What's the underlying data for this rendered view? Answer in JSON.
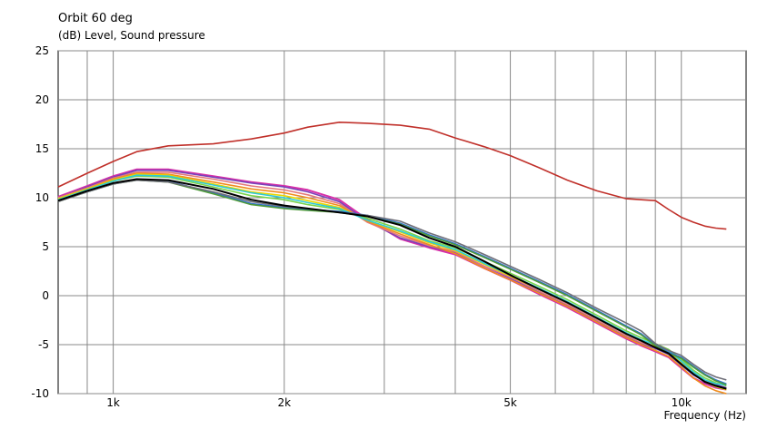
{
  "chart_data": {
    "type": "line",
    "title": "Orbit 60 deg",
    "ylabel": "(dB)  Level, Sound pressure",
    "xlabel": "Frequency  (Hz)",
    "xscale": "log",
    "xlim": [
      800,
      13000
    ],
    "ylim": [
      -10,
      25
    ],
    "yticks": [
      -10,
      -5,
      0,
      5,
      10,
      15,
      20,
      25
    ],
    "xticks": [
      {
        "value": 1000,
        "label": "1k"
      },
      {
        "value": 2000,
        "label": "2k"
      },
      {
        "value": 5000,
        "label": "5k"
      },
      {
        "value": 10000,
        "label": "10k"
      }
    ],
    "grid": true,
    "series": [
      {
        "color": "#c0302a",
        "x": [
          800,
          900,
          1000,
          1100,
          1250,
          1500,
          1750,
          2000,
          2200,
          2500,
          2800,
          3200,
          3600,
          4000,
          4500,
          5000,
          5600,
          6300,
          7100,
          8000,
          8500,
          9000,
          9500,
          10000,
          10500,
          11000,
          11500,
          12000
        ],
        "y": [
          11.1,
          12.5,
          13.7,
          14.7,
          15.3,
          15.5,
          16.0,
          16.6,
          17.2,
          17.7,
          17.6,
          17.4,
          17.0,
          16.1,
          15.2,
          14.3,
          13.1,
          11.8,
          10.7,
          9.9,
          9.8,
          9.7,
          8.8,
          8.0,
          7.5,
          7.1,
          6.9,
          6.8
        ]
      },
      {
        "color": "#d72fa8",
        "x": [
          800,
          900,
          1000,
          1100,
          1250,
          1500,
          1750,
          2000,
          2200,
          2500,
          2800,
          3200,
          3600,
          4000,
          4500,
          5000,
          5600,
          6300,
          7100,
          8000,
          8500,
          9000,
          9500,
          10000,
          10500,
          11000,
          11500,
          12000
        ],
        "y": [
          10.1,
          11.2,
          12.2,
          12.9,
          12.9,
          12.2,
          11.6,
          11.2,
          10.8,
          9.8,
          7.8,
          5.8,
          4.9,
          4.2,
          2.8,
          1.6,
          0.2,
          -1.2,
          -2.8,
          -4.4,
          -5.1,
          -5.7,
          -6.3,
          -7.4,
          -8.4,
          -9.0,
          -9.4,
          -9.6
        ]
      },
      {
        "color": "#7a42b8",
        "x": [
          800,
          900,
          1000,
          1100,
          1250,
          1500,
          1750,
          2000,
          2200,
          2500,
          2800,
          3200,
          3600,
          4000,
          4500,
          5000,
          5600,
          6300,
          7100,
          8000,
          8500,
          9000,
          9500,
          10000,
          10500,
          11000,
          11500,
          12000
        ],
        "y": [
          10.0,
          11.1,
          12.1,
          12.8,
          12.8,
          12.1,
          11.5,
          11.1,
          10.6,
          9.6,
          7.6,
          5.9,
          5.0,
          4.4,
          3.0,
          1.8,
          0.4,
          -1.0,
          -2.6,
          -4.2,
          -4.9,
          -5.4,
          -6.0,
          -7.1,
          -8.1,
          -8.7,
          -9.1,
          -9.4
        ]
      },
      {
        "color": "#e47a7a",
        "x": [
          800,
          900,
          1000,
          1100,
          1250,
          1500,
          1750,
          2000,
          2200,
          2500,
          2800,
          3200,
          3600,
          4000,
          4500,
          5000,
          5600,
          6300,
          7100,
          8000,
          8500,
          9000,
          9500,
          10000,
          10500,
          11000,
          11500,
          12000
        ],
        "y": [
          10.0,
          11.0,
          12.0,
          12.6,
          12.6,
          11.9,
          11.2,
          10.8,
          10.3,
          9.4,
          7.5,
          6.1,
          5.1,
          4.5,
          3.0,
          1.9,
          0.5,
          -0.9,
          -2.5,
          -4.1,
          -4.8,
          -5.3,
          -5.9,
          -7.0,
          -8.0,
          -8.7,
          -9.2,
          -9.5
        ]
      },
      {
        "color": "#f08c1e",
        "x": [
          800,
          900,
          1000,
          1100,
          1250,
          1500,
          1750,
          2000,
          2200,
          2500,
          2800,
          3200,
          3600,
          4000,
          4500,
          5000,
          5600,
          6300,
          7100,
          8000,
          8500,
          9000,
          9500,
          10000,
          10500,
          11000,
          11500,
          12000
        ],
        "y": [
          9.9,
          10.9,
          11.9,
          12.5,
          12.4,
          11.6,
          10.9,
          10.5,
          10.0,
          9.2,
          7.6,
          6.3,
          5.2,
          4.3,
          2.8,
          1.6,
          0.3,
          -1.1,
          -2.7,
          -4.3,
          -5.0,
          -5.6,
          -6.2,
          -7.3,
          -8.4,
          -9.2,
          -9.7,
          -10.0
        ]
      },
      {
        "color": "#e8d600",
        "x": [
          800,
          900,
          1000,
          1100,
          1250,
          1500,
          1750,
          2000,
          2200,
          2500,
          2800,
          3200,
          3600,
          4000,
          4500,
          5000,
          5600,
          6300,
          7100,
          8000,
          8500,
          9000,
          9500,
          10000,
          10500,
          11000,
          11500,
          12000
        ],
        "y": [
          9.9,
          10.9,
          11.8,
          12.4,
          12.3,
          11.4,
          10.6,
          10.2,
          9.7,
          9.0,
          7.7,
          6.5,
          5.4,
          4.6,
          3.2,
          2.0,
          0.7,
          -0.7,
          -2.3,
          -3.9,
          -4.6,
          -5.2,
          -5.8,
          -6.9,
          -8.0,
          -8.8,
          -9.3,
          -9.6
        ]
      },
      {
        "color": "#78d34a",
        "x": [
          800,
          900,
          1000,
          1100,
          1250,
          1500,
          1750,
          2000,
          2200,
          2500,
          2800,
          3200,
          3600,
          4000,
          4500,
          5000,
          5600,
          6300,
          7100,
          8000,
          8500,
          9000,
          9500,
          10000,
          10500,
          11000,
          11500,
          12000
        ],
        "y": [
          9.8,
          10.8,
          11.7,
          12.2,
          12.1,
          11.1,
          10.2,
          9.8,
          9.3,
          8.8,
          7.9,
          6.8,
          5.6,
          4.9,
          3.5,
          2.3,
          1.0,
          -0.4,
          -2.0,
          -3.6,
          -4.3,
          -4.9,
          -5.5,
          -6.5,
          -7.6,
          -8.4,
          -8.9,
          -9.2
        ]
      },
      {
        "color": "#2ec9d6",
        "x": [
          800,
          900,
          1000,
          1100,
          1250,
          1500,
          1750,
          2000,
          2200,
          2500,
          2800,
          3200,
          3600,
          4000,
          4500,
          5000,
          5600,
          6300,
          7100,
          8000,
          8500,
          9000,
          9500,
          10000,
          10500,
          11000,
          11500,
          12000
        ],
        "y": [
          9.8,
          10.8,
          11.7,
          12.3,
          12.2,
          11.3,
          10.5,
          10.0,
          9.5,
          8.9,
          7.7,
          6.6,
          5.5,
          4.7,
          3.3,
          2.1,
          0.8,
          -0.6,
          -2.2,
          -3.8,
          -4.5,
          -5.0,
          -5.6,
          -6.7,
          -7.8,
          -8.6,
          -9.0,
          -9.1
        ]
      },
      {
        "color": "#2d6fd0",
        "x": [
          800,
          900,
          1000,
          1100,
          1250,
          1500,
          1750,
          2000,
          2200,
          2500,
          2800,
          3200,
          3600,
          4000,
          4500,
          5000,
          5600,
          6300,
          7100,
          8000,
          8500,
          9000,
          9500,
          10000,
          10500,
          11000,
          11500,
          12000
        ],
        "y": [
          9.7,
          10.6,
          11.4,
          11.9,
          11.7,
          10.5,
          9.4,
          9.0,
          8.8,
          8.6,
          8.2,
          7.4,
          6.2,
          5.3,
          4.0,
          2.8,
          1.5,
          0.1,
          -1.5,
          -3.1,
          -3.9,
          -5.0,
          -5.8,
          -6.3,
          -7.2,
          -8.0,
          -8.6,
          -9.0
        ]
      },
      {
        "color": "#4f9a3a",
        "x": [
          800,
          900,
          1000,
          1100,
          1250,
          1500,
          1750,
          2000,
          2200,
          2500,
          2800,
          3200,
          3600,
          4000,
          4500,
          5000,
          5600,
          6300,
          7100,
          8000,
          8500,
          9000,
          9500,
          10000,
          10500,
          11000,
          11500,
          12000
        ],
        "y": [
          9.6,
          10.6,
          11.4,
          11.8,
          11.6,
          10.4,
          9.3,
          8.9,
          8.7,
          8.5,
          8.1,
          7.3,
          6.1,
          5.2,
          3.9,
          2.7,
          1.4,
          0.0,
          -1.6,
          -3.2,
          -4.0,
          -5.1,
          -5.9,
          -6.4,
          -7.3,
          -8.1,
          -8.7,
          -9.1
        ]
      },
      {
        "color": "#6e6e78",
        "x": [
          800,
          900,
          1000,
          1100,
          1250,
          1500,
          1750,
          2000,
          2200,
          2500,
          2800,
          3200,
          3600,
          4000,
          4500,
          5000,
          5600,
          6300,
          7100,
          8000,
          8500,
          9000,
          9500,
          10000,
          10500,
          11000,
          11500,
          12000
        ],
        "y": [
          9.6,
          10.6,
          11.4,
          11.8,
          11.6,
          10.6,
          9.6,
          9.1,
          8.9,
          8.5,
          8.2,
          7.6,
          6.4,
          5.5,
          4.2,
          3.0,
          1.7,
          0.3,
          -1.3,
          -2.8,
          -3.6,
          -4.9,
          -5.6,
          -6.1,
          -7.0,
          -7.8,
          -8.3,
          -8.6
        ]
      },
      {
        "color": "#000000",
        "x": [
          800,
          900,
          1000,
          1100,
          1250,
          1500,
          1750,
          2000,
          2200,
          2500,
          2800,
          3200,
          3600,
          4000,
          4500,
          5000,
          5600,
          6300,
          7100,
          8000,
          8500,
          9000,
          9500,
          10000,
          10500,
          11000,
          11500,
          12000
        ],
        "y": [
          9.7,
          10.7,
          11.5,
          11.9,
          11.8,
          10.9,
          9.8,
          9.2,
          8.9,
          8.5,
          8.1,
          7.2,
          5.9,
          5.0,
          3.5,
          2.1,
          0.7,
          -0.7,
          -2.3,
          -3.9,
          -4.6,
          -5.3,
          -5.9,
          -7.0,
          -8.0,
          -8.8,
          -9.2,
          -9.5
        ]
      }
    ]
  }
}
